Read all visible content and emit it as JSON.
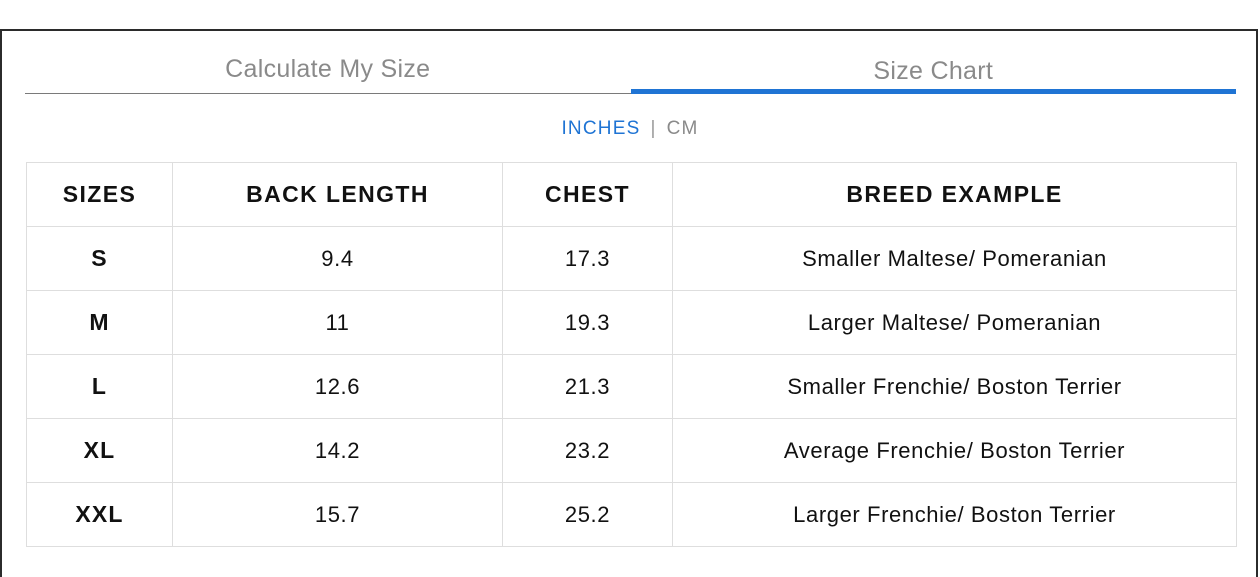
{
  "tabs": [
    {
      "label": "Calculate My Size",
      "active": false
    },
    {
      "label": "Size Chart",
      "active": true
    }
  ],
  "units": {
    "inches": "INCHES",
    "separator": "|",
    "cm": "CM",
    "selected": "INCHES"
  },
  "table": {
    "headers": [
      "SIZES",
      "BACK LENGTH",
      "CHEST",
      "BREED EXAMPLE"
    ],
    "rows": [
      [
        "S",
        "9.4",
        "17.3",
        "Smaller Maltese/ Pomeranian"
      ],
      [
        "M",
        "11",
        "19.3",
        "Larger Maltese/ Pomeranian"
      ],
      [
        "L",
        "12.6",
        "21.3",
        "Smaller Frenchie/ Boston Terrier"
      ],
      [
        "XL",
        "14.2",
        "23.2",
        "Average Frenchie/ Boston Terrier"
      ],
      [
        "XXL",
        "15.7",
        "25.2",
        "Larger Frenchie/ Boston Terrier"
      ]
    ]
  },
  "colors": {
    "accent": "#1f74d4",
    "muted_text": "#8a8a8a",
    "border": "#dedede"
  }
}
